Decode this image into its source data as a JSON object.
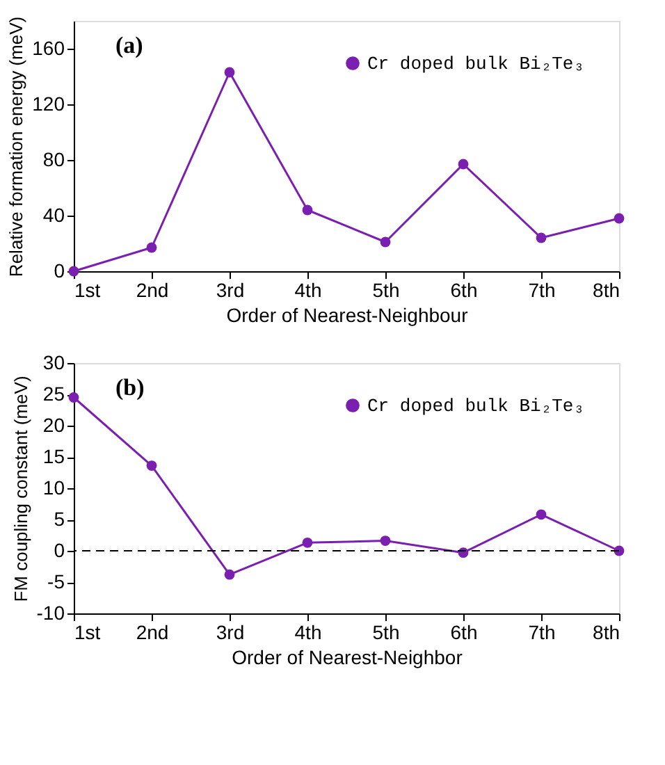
{
  "chart_data": [
    {
      "type": "line",
      "categories": [
        "1st",
        "2nd",
        "3rd",
        "4th",
        "5th",
        "6th",
        "7th",
        "8th"
      ],
      "xlabel": "Order of Nearest-Neighbour",
      "ylabel": "Relative formation energy (meV)",
      "series": [
        {
          "name": "Cr doped bulk Bi₂Te₃",
          "color": "#7a1fb0",
          "values": [
            0,
            17,
            143,
            44,
            21,
            77,
            24,
            38
          ]
        }
      ],
      "ylim": [
        0,
        180
      ],
      "yticks": [
        0,
        40,
        80,
        120,
        160
      ],
      "grid": false,
      "legend": "top right",
      "marker": "circle",
      "line_style": "solid",
      "annotations": [
        "(a)"
      ]
    },
    {
      "type": "line",
      "categories": [
        "1st",
        "2nd",
        "3rd",
        "4th",
        "5th",
        "6th",
        "7th",
        "8th"
      ],
      "xlabel": "Order of Nearest-Neighbor",
      "ylabel": "FM coupling constant (meV)",
      "series": [
        {
          "name": "Cr doped bulk Bi₂Te₃",
          "color": "#7a1fb0",
          "values": [
            24.5,
            13.6,
            -3.8,
            1.3,
            1.6,
            -0.3,
            5.8,
            0
          ]
        }
      ],
      "ylim": [
        -10,
        30
      ],
      "yticks": [
        -10,
        -5,
        0,
        5,
        10,
        15,
        20,
        25,
        30
      ],
      "grid": false,
      "legend": "top right",
      "marker": "circle",
      "line_style": "solid",
      "annotations": [
        "(b)"
      ],
      "ref_lines": [
        {
          "axis": "y",
          "value": 0,
          "line_style": "dashed",
          "color": "#000000"
        }
      ]
    }
  ]
}
